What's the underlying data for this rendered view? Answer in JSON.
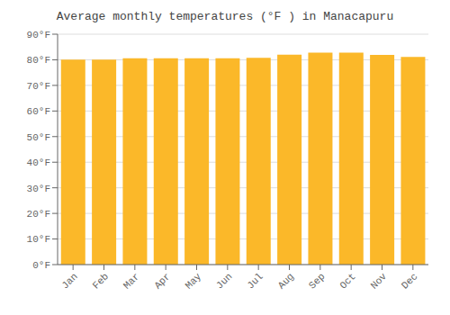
{
  "chart_data": {
    "type": "bar",
    "title": "Average monthly temperatures (°F ) in Manacapuru",
    "categories": [
      "Jan",
      "Feb",
      "Mar",
      "Apr",
      "May",
      "Jun",
      "Jul",
      "Aug",
      "Sep",
      "Oct",
      "Nov",
      "Dec"
    ],
    "values": [
      80.1,
      80.1,
      80.6,
      80.6,
      80.6,
      80.6,
      80.8,
      82.0,
      82.8,
      82.8,
      81.9,
      81.1
    ],
    "color": "#FBB829",
    "ylim": [
      0,
      90
    ],
    "yticks": [
      {
        "value": 0,
        "label": "0°F"
      },
      {
        "value": 10,
        "label": "10°F"
      },
      {
        "value": 20,
        "label": "20°F"
      },
      {
        "value": 30,
        "label": "30°F"
      },
      {
        "value": 40,
        "label": "40°F"
      },
      {
        "value": 50,
        "label": "50°F"
      },
      {
        "value": 60,
        "label": "60°F"
      },
      {
        "value": 70,
        "label": "70°F"
      },
      {
        "value": 80,
        "label": "80°F"
      },
      {
        "value": 90,
        "label": "90°F"
      }
    ],
    "grid": true
  }
}
